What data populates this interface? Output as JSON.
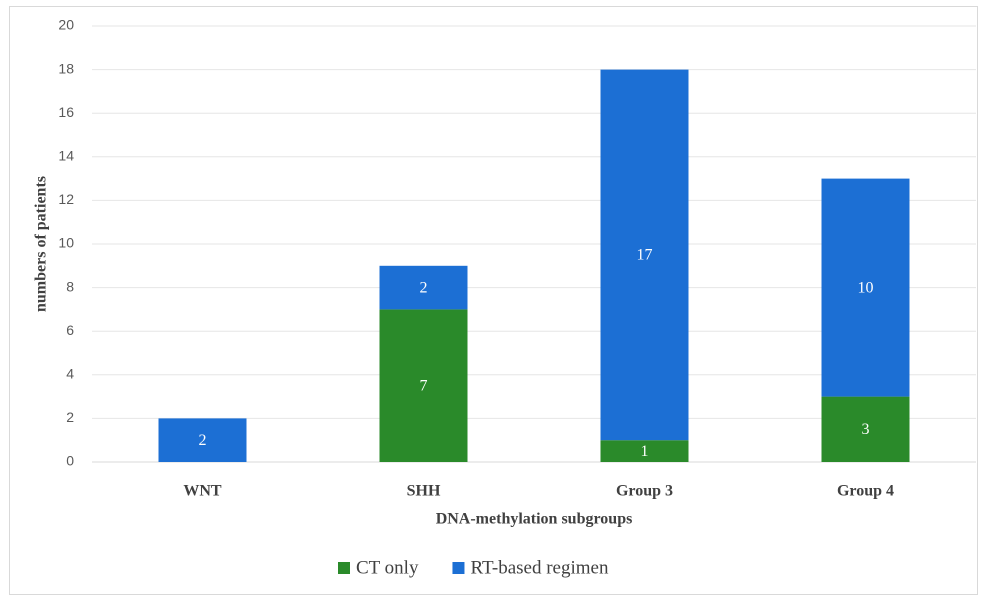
{
  "chart_data": {
    "type": "stacked_bar",
    "categories": [
      "WNT",
      "SHH",
      "Group 3",
      "Group 4"
    ],
    "series": [
      {
        "name": "CT only",
        "color": "#2a8a2a",
        "values": [
          null,
          7,
          1,
          3
        ]
      },
      {
        "name": "RT-based regimen",
        "color": "#1c6fd4",
        "values": [
          2,
          2,
          17,
          10
        ]
      }
    ],
    "xlabel": "DNA-methylation subgroups",
    "ylabel": "numbers of patients",
    "ylim": [
      0,
      20
    ],
    "yticks": [
      0,
      2,
      4,
      6,
      8,
      10,
      12,
      14,
      16,
      18,
      20
    ],
    "grid": true,
    "legend": "bottom"
  }
}
